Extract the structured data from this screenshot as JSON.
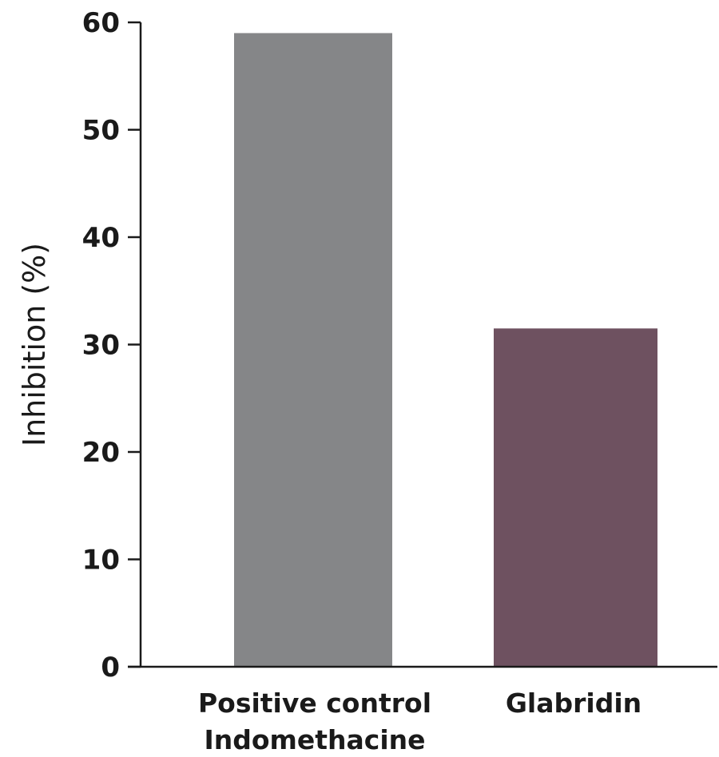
{
  "chart_data": {
    "type": "bar",
    "title": "",
    "xlabel": "",
    "ylabel": "Inhibition (%)",
    "ylim": [
      0,
      60
    ],
    "yticks": [
      0,
      10,
      20,
      30,
      40,
      50,
      60
    ],
    "categories": [
      [
        "Positive control",
        "Indomethacine"
      ],
      [
        "Glabridin"
      ]
    ],
    "values": [
      59,
      31.5
    ],
    "bar_colors": [
      "#858688",
      "#6e5160"
    ],
    "grid": false,
    "legend": "none"
  }
}
